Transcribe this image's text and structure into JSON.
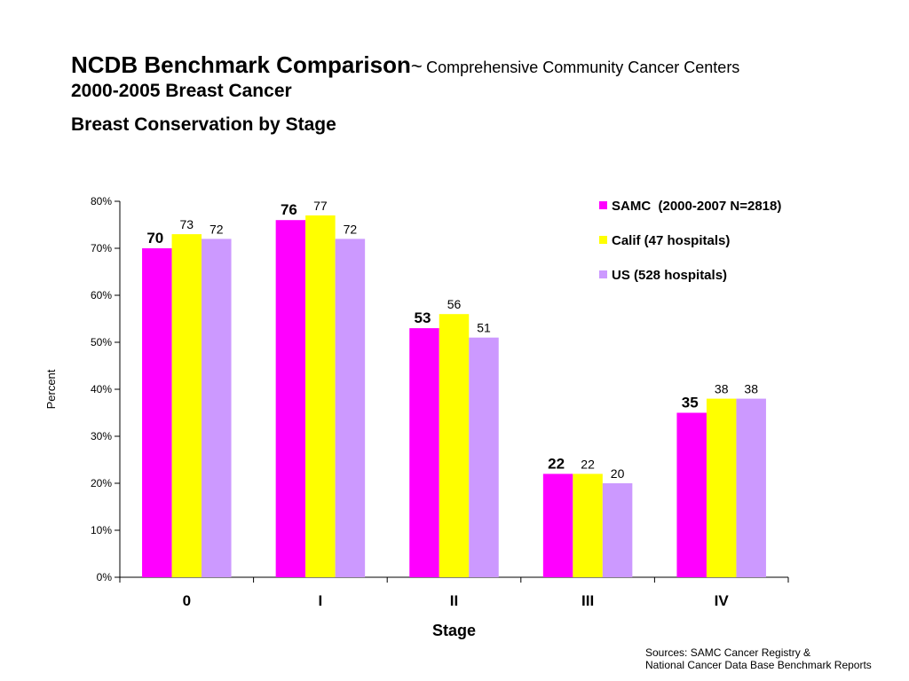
{
  "title": {
    "main": "NCDB Benchmark Comparison",
    "tilde": "~",
    "subtitle": "Comprehensive Community Cancer Centers",
    "line2": "2000-2005 Breast Cancer",
    "line3": "Breast Conservation by Stage"
  },
  "chart_data": {
    "type": "bar",
    "categories": [
      "0",
      "I",
      "II",
      "III",
      "IV"
    ],
    "series": [
      {
        "name": "SAMC  (2000-2007 N=2818)",
        "values": [
          70,
          76,
          53,
          22,
          35
        ],
        "color": "#ff00ff",
        "label_bold": true
      },
      {
        "name": "Calif (47 hospitals)",
        "values": [
          73,
          77,
          56,
          22,
          38
        ],
        "color": "#ffff00",
        "label_bold": false
      },
      {
        "name": "US (528 hospitals)",
        "values": [
          72,
          72,
          51,
          20,
          38
        ],
        "color": "#cc99ff",
        "label_bold": false
      }
    ],
    "xlabel": "Stage",
    "ylabel": "Percent",
    "ylim": [
      0,
      80
    ],
    "yticks": [
      "0%",
      "10%",
      "20%",
      "30%",
      "40%",
      "50%",
      "60%",
      "70%",
      "80%"
    ],
    "grid": false,
    "legend_position": "top-right"
  },
  "sources": {
    "line1": "Sources: SAMC Cancer Registry &",
    "line2": "National Cancer Data Base Benchmark Reports"
  }
}
